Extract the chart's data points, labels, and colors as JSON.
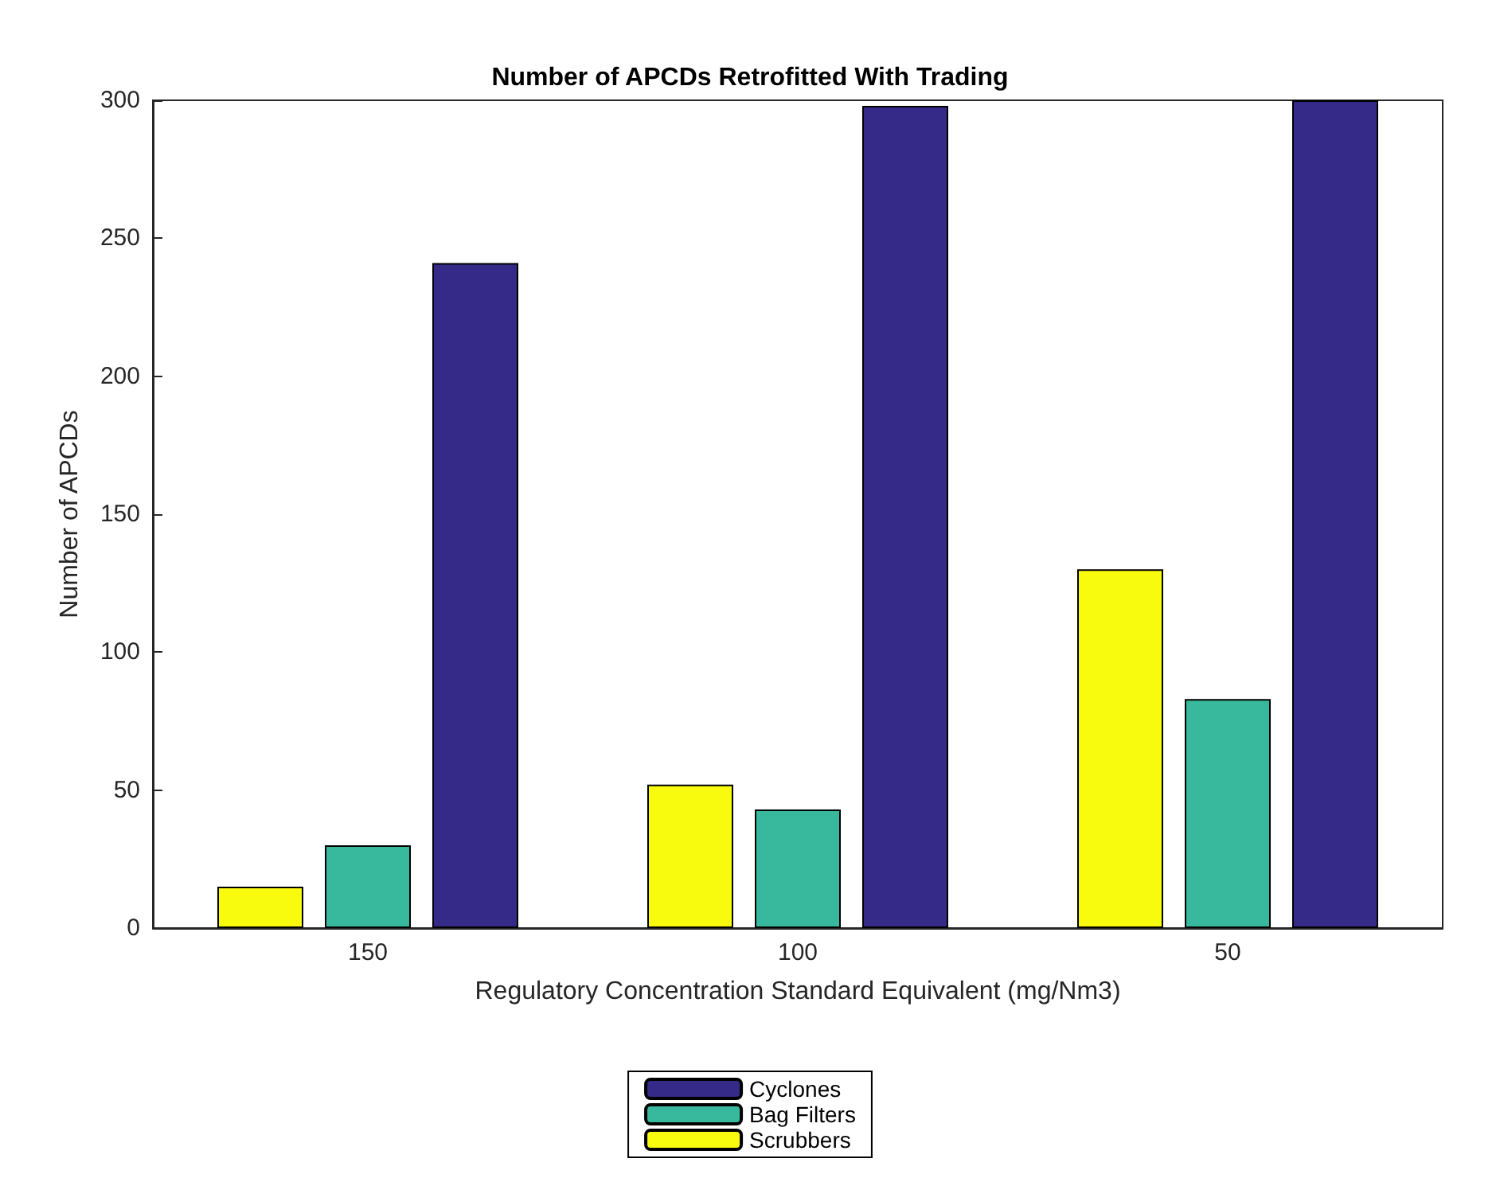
{
  "chart_data": {
    "type": "bar",
    "title": "Number of APCDs Retrofitted With Trading",
    "xlabel": "Regulatory Concentration Standard Equivalent (mg/Nm3)",
    "ylabel": "Number of APCDs",
    "categories": [
      "150",
      "100",
      "50"
    ],
    "series": [
      {
        "name": "Scrubbers",
        "color": "#f9fb0e",
        "values": [
          15,
          52,
          130
        ]
      },
      {
        "name": "Bag Filters",
        "color": "#38b99e",
        "values": [
          30,
          43,
          83
        ]
      },
      {
        "name": "Cyclones",
        "color": "#352a87",
        "values": [
          241,
          298,
          300
        ]
      }
    ],
    "ylim": [
      0,
      300
    ],
    "yticks": [
      0,
      50,
      100,
      150,
      200,
      250,
      300
    ],
    "grid": false,
    "legend": "bottom"
  }
}
